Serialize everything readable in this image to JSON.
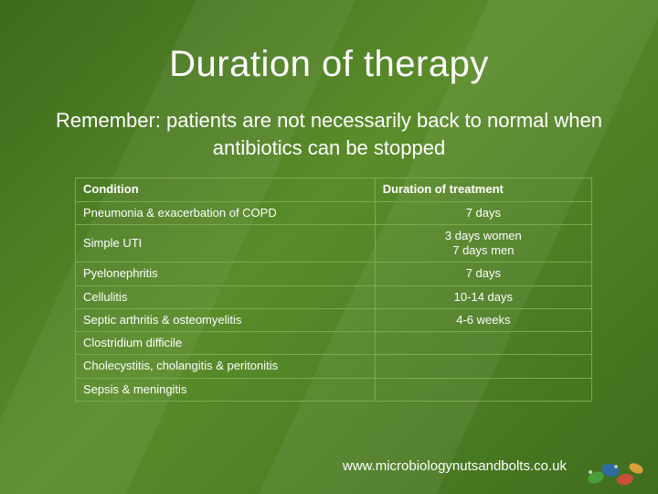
{
  "title": "Duration of therapy",
  "subtitle": "Remember: patients are not necessarily back to normal when antibiotics can be stopped",
  "table": {
    "type": "table",
    "columns": [
      "Condition",
      "Duration of treatment"
    ],
    "col_widths": [
      "58%",
      "42%"
    ],
    "header_fontweight": 700,
    "cell_fontsize": 13,
    "border_color": "#7fa84d",
    "text_color": "#ffffff",
    "rows": [
      {
        "condition": "Pneumonia & exacerbation of COPD",
        "duration": "7 days"
      },
      {
        "condition": "Simple UTI",
        "duration": "3 days women\n7 days men"
      },
      {
        "condition": "Pyelonephritis",
        "duration": "7 days"
      },
      {
        "condition": "Cellulitis",
        "duration": "10-14 days"
      },
      {
        "condition": "Septic arthritis & osteomyelitis",
        "duration": "4-6 weeks"
      },
      {
        "condition": "Clostridium difficile",
        "duration": ""
      },
      {
        "condition": "Cholecystitis, cholangitis & peritonitis",
        "duration": ""
      },
      {
        "condition": "Sepsis & meningitis",
        "duration": ""
      }
    ]
  },
  "footer": "www.microbiologynutsandbolts.co.uk",
  "style": {
    "background_colors": [
      "#3d6b1c",
      "#5a8c2a",
      "#3f6d1d"
    ],
    "title_color": "#ffffff",
    "title_fontsize": 40,
    "subtitle_fontsize": 22,
    "font_family": "Verdana"
  },
  "decoration": {
    "icon": "corner-flourish",
    "colors": [
      "#4a9e3a",
      "#2f6b9e",
      "#c94f3a",
      "#d9a03a"
    ]
  }
}
